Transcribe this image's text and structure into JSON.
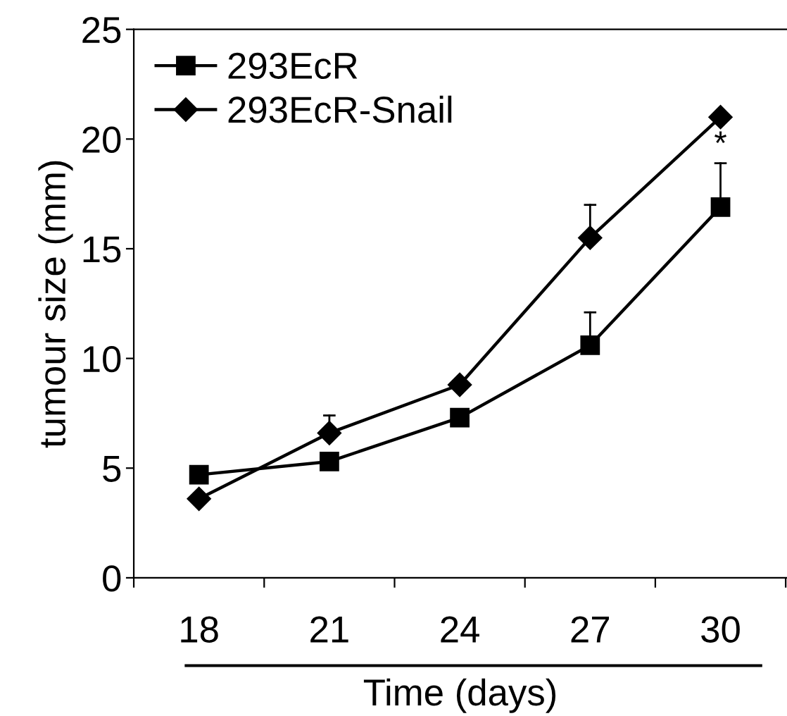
{
  "chart_data": {
    "type": "line",
    "xlabel": "Time (days)",
    "ylabel": "tumour size (mm)",
    "categories": [
      "18",
      "21",
      "24",
      "27",
      "30"
    ],
    "series": [
      {
        "name": "293EcR",
        "color": "#000000",
        "marker": "square",
        "values": [
          4.7,
          5.3,
          7.3,
          10.6,
          16.9
        ],
        "errors": [
          null,
          null,
          null,
          [
            10.6,
            12.1
          ],
          [
            16.9,
            18.9
          ]
        ]
      },
      {
        "name": "293EcR-Snail",
        "color": "#000000",
        "marker": "diamond",
        "values": [
          3.6,
          6.6,
          8.8,
          15.5,
          21.0
        ],
        "errors": [
          null,
          [
            6.6,
            7.4
          ],
          null,
          [
            15.5,
            17.0
          ],
          null
        ]
      }
    ],
    "ylim": [
      0,
      25
    ],
    "yticks": [
      0,
      5,
      10,
      15,
      20,
      25
    ],
    "grid": false,
    "legend": "top left",
    "annotations": [
      "*"
    ]
  }
}
